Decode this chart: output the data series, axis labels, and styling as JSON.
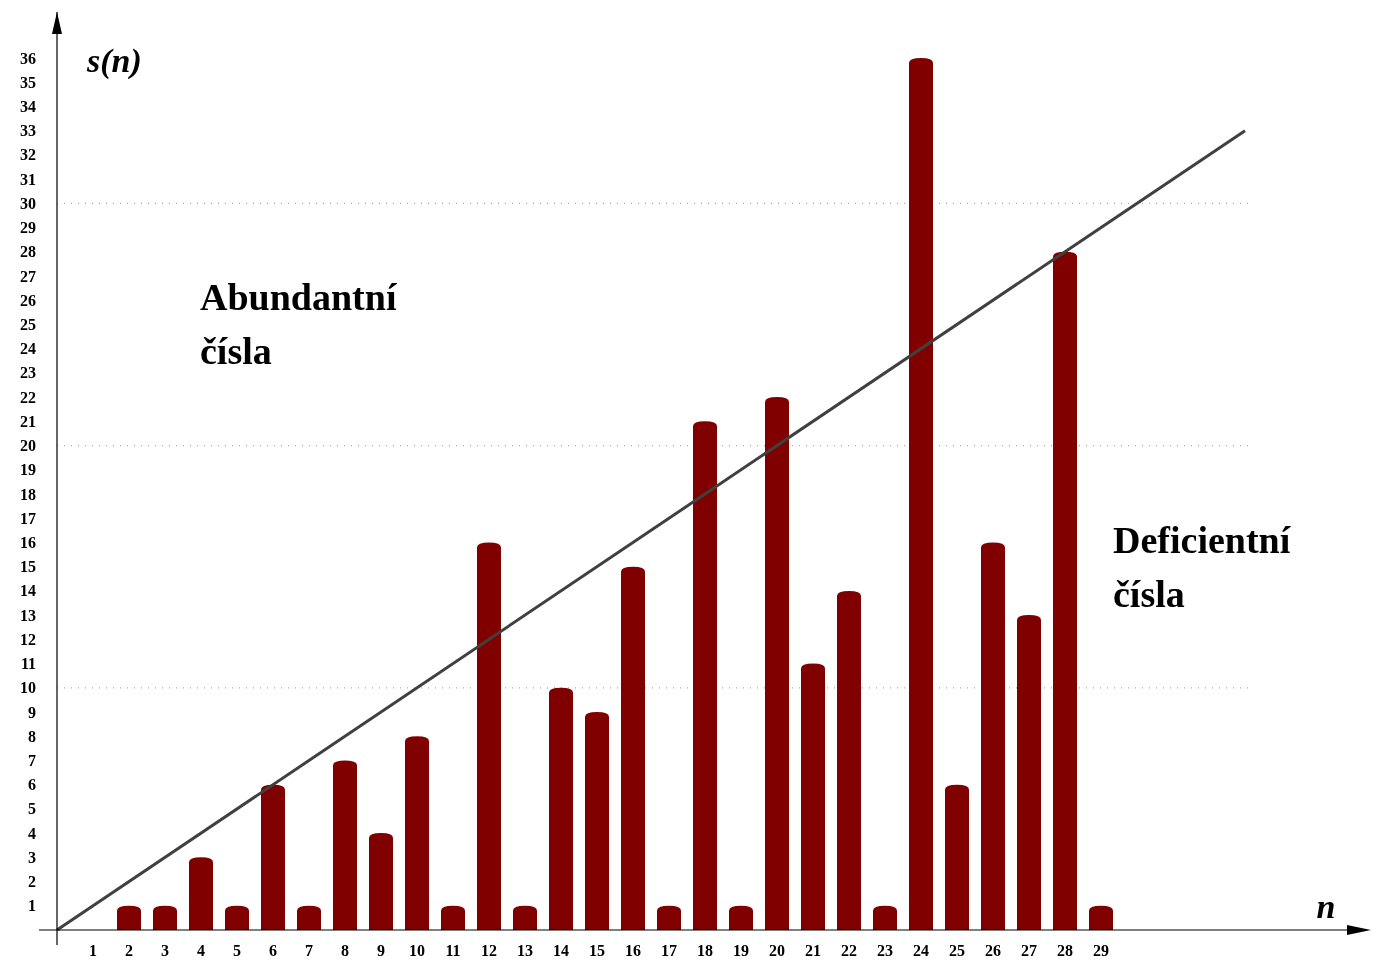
{
  "chart_data": {
    "type": "bar",
    "xlabel": "n",
    "ylabel": "s(n)",
    "x": [
      1,
      2,
      3,
      4,
      5,
      6,
      7,
      8,
      9,
      10,
      11,
      12,
      13,
      14,
      15,
      16,
      17,
      18,
      19,
      20,
      21,
      22,
      23,
      24,
      25,
      26,
      27,
      28,
      29
    ],
    "series": [
      {
        "color": "#800000",
        "values": [
          0,
          1,
          1,
          3,
          1,
          6,
          1,
          7,
          4,
          8,
          1,
          16,
          1,
          10,
          9,
          15,
          1,
          21,
          1,
          22,
          11,
          14,
          1,
          36,
          6,
          16,
          13,
          28,
          1
        ]
      },
      {
        "type": "line",
        "color": "#404040",
        "x": [
          0,
          33
        ],
        "values": [
          0,
          33
        ]
      }
    ],
    "xlim": [
      0,
      36.5
    ],
    "ylim": [
      0,
      37.9
    ],
    "xticks": [
      1,
      2,
      3,
      4,
      5,
      6,
      7,
      8,
      9,
      10,
      11,
      12,
      13,
      14,
      15,
      16,
      17,
      18,
      19,
      20,
      21,
      22,
      23,
      24,
      25,
      26,
      27,
      28,
      29
    ],
    "yticks": [
      1,
      2,
      3,
      4,
      5,
      6,
      7,
      8,
      9,
      10,
      11,
      12,
      13,
      14,
      15,
      16,
      17,
      18,
      19,
      20,
      21,
      22,
      23,
      24,
      25,
      26,
      27,
      28,
      29,
      30,
      31,
      32,
      33,
      34,
      35,
      36
    ],
    "ref_lines": [
      {
        "axis": "y",
        "value": 10,
        "line_style": "dotted",
        "color": "#aaaaaa"
      },
      {
        "axis": "y",
        "value": 20,
        "line_style": "dotted",
        "color": "#aaaaaa"
      },
      {
        "axis": "y",
        "value": 30,
        "line_style": "dotted",
        "color": "#aaaaaa"
      }
    ],
    "annotations": [
      "Abundantní\nčísla",
      "Deficientní\nčísla"
    ]
  }
}
